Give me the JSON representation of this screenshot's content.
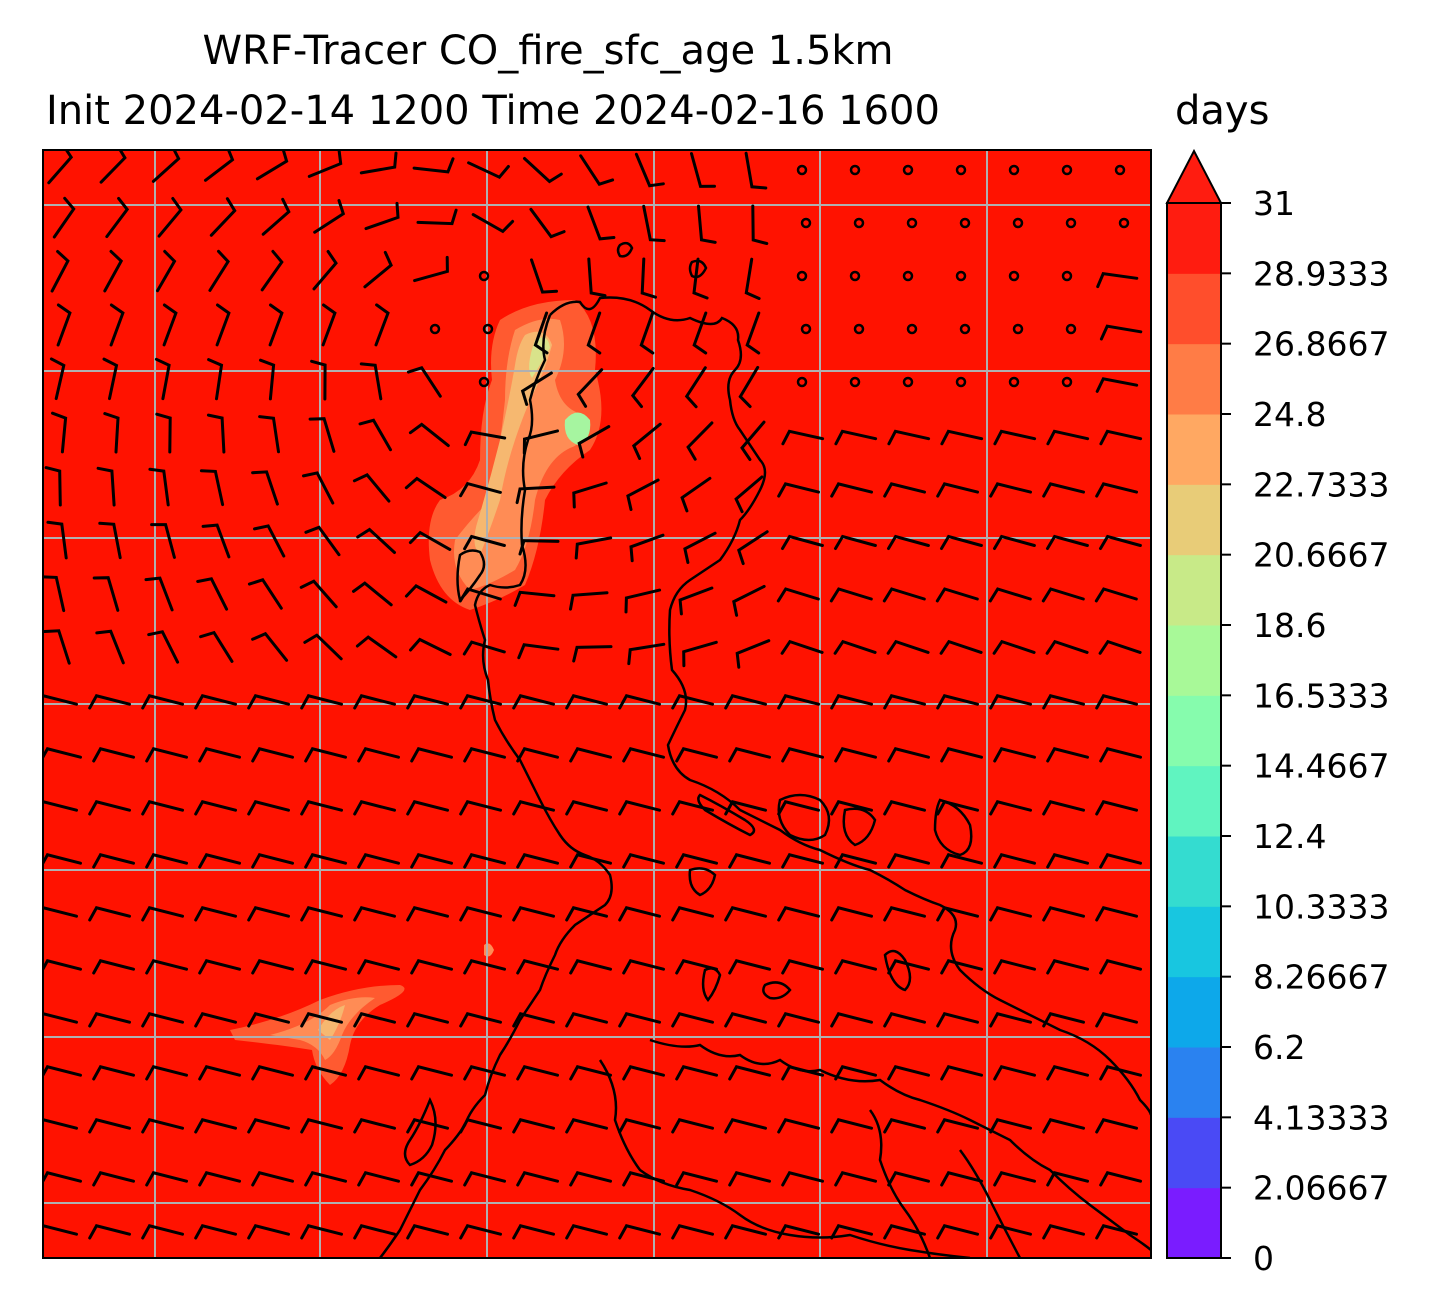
{
  "title": {
    "line1": "WRF-Tracer CO_fire_sfc_age 1.5km",
    "line2": "Init 2024-02-14 1200 Time 2024-02-16 1600",
    "units": "days"
  },
  "colorbar": {
    "ticks": [
      "0",
      "2.06667",
      "4.13333",
      "6.2",
      "8.26667",
      "10.3333",
      "12.4",
      "14.4667",
      "16.5333",
      "18.6",
      "20.6667",
      "22.7333",
      "24.8",
      "26.8667",
      "28.9333",
      "31"
    ],
    "colors": [
      "#7a1cff",
      "#4a4af5",
      "#2a82f0",
      "#0da8ea",
      "#18c6e0",
      "#34dcd0",
      "#60f4c0",
      "#86fcad",
      "#a8f998",
      "#c8ea88",
      "#e8cc78",
      "#ffa862",
      "#ff7c46",
      "#ff4e2c",
      "#ff1c10"
    ],
    "extend_color": "#ff1c10"
  },
  "map": {
    "background_color": "#ff1200",
    "plume_colors": [
      "#ff5a30",
      "#ff8c55",
      "#f6b870",
      "#d9e38a",
      "#a6f5a0"
    ]
  }
}
